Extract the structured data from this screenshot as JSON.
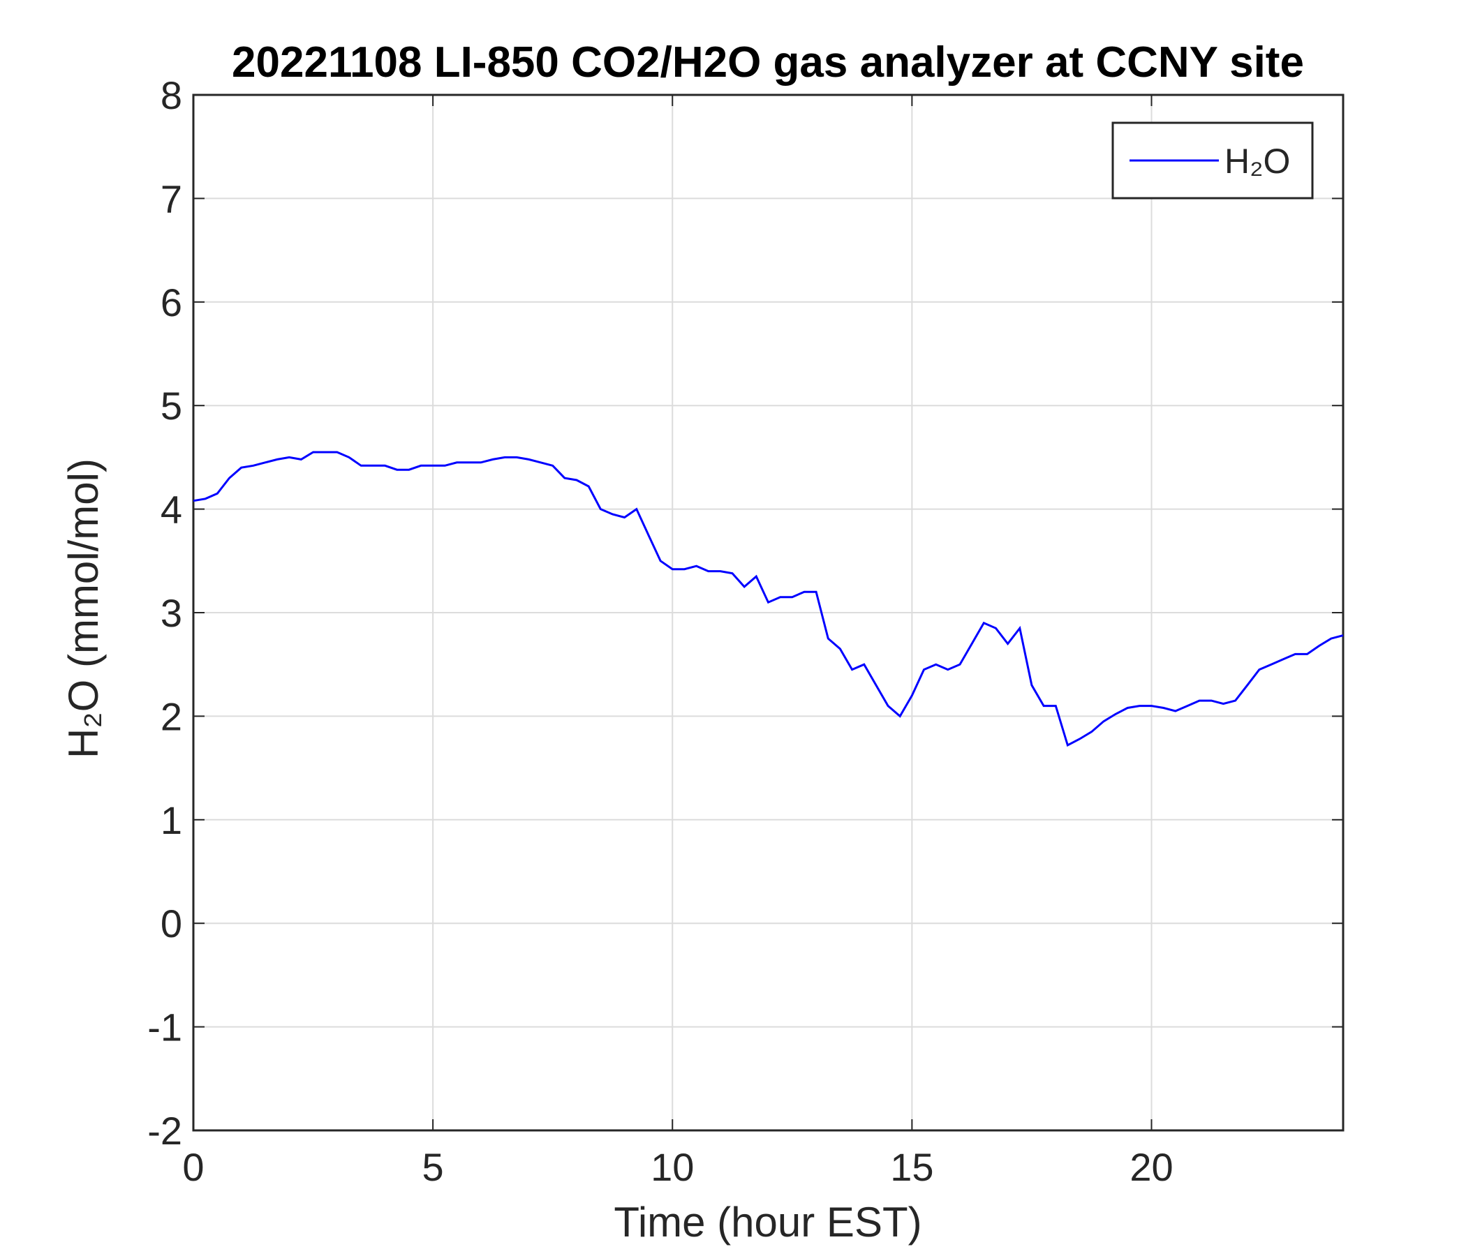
{
  "chart_data": {
    "type": "line",
    "title": "20221108 LI-850 CO2/H2O gas analyzer at CCNY site",
    "x_label": "Time (hour EST)",
    "y_label": "H₂O (mmol/mol)",
    "x": [
      0,
      0.25,
      0.5,
      0.75,
      1,
      1.25,
      1.5,
      1.75,
      2,
      2.25,
      2.5,
      2.75,
      3,
      3.25,
      3.5,
      3.75,
      4,
      4.25,
      4.5,
      4.75,
      5,
      5.25,
      5.5,
      5.75,
      6,
      6.25,
      6.5,
      6.75,
      7,
      7.25,
      7.5,
      7.75,
      8,
      8.25,
      8.5,
      8.75,
      9,
      9.25,
      9.5,
      9.75,
      10,
      10.25,
      10.5,
      10.75,
      11,
      11.25,
      11.5,
      11.75,
      12,
      12.25,
      12.5,
      12.75,
      13,
      13.25,
      13.5,
      13.75,
      14,
      14.25,
      14.5,
      14.75,
      15,
      15.25,
      15.5,
      15.75,
      16,
      16.25,
      16.5,
      16.75,
      17,
      17.25,
      17.5,
      17.75,
      18,
      18.25,
      18.5,
      18.75,
      19,
      19.25,
      19.5,
      19.75,
      20,
      20.25,
      20.5,
      20.75,
      21,
      21.25,
      21.5,
      21.75,
      22,
      22.25,
      22.5,
      22.75,
      23,
      23.25,
      23.5,
      23.75,
      24
    ],
    "series": [
      {
        "name": "H₂O",
        "color": "#0000ff",
        "values": [
          4.08,
          4.1,
          4.15,
          4.3,
          4.4,
          4.42,
          4.45,
          4.48,
          4.5,
          4.48,
          4.55,
          4.55,
          4.55,
          4.5,
          4.42,
          4.42,
          4.42,
          4.38,
          4.38,
          4.42,
          4.42,
          4.42,
          4.45,
          4.45,
          4.45,
          4.48,
          4.5,
          4.5,
          4.48,
          4.45,
          4.42,
          4.3,
          4.28,
          4.22,
          4.0,
          3.95,
          3.92,
          4.0,
          3.75,
          3.5,
          3.42,
          3.42,
          3.45,
          3.4,
          3.4,
          3.38,
          3.25,
          3.35,
          3.1,
          3.15,
          3.15,
          3.2,
          3.2,
          2.75,
          2.65,
          2.45,
          2.5,
          2.3,
          2.1,
          2.0,
          2.2,
          2.45,
          2.5,
          2.45,
          2.5,
          2.7,
          2.9,
          2.85,
          2.7,
          2.85,
          2.3,
          2.1,
          2.1,
          1.72,
          1.78,
          1.85,
          1.95,
          2.02,
          2.08,
          2.1,
          2.1,
          2.08,
          2.05,
          2.1,
          2.15,
          2.15,
          2.12,
          2.15,
          2.3,
          2.45,
          2.5,
          2.55,
          2.6,
          2.6,
          2.68,
          2.75,
          2.78
        ]
      }
    ],
    "xlim": [
      0,
      24
    ],
    "xticks": [
      0,
      5,
      10,
      15,
      20
    ],
    "ylim": [
      -2,
      8
    ],
    "yticks": [
      -2,
      -1,
      0,
      1,
      2,
      3,
      4,
      5,
      6,
      7,
      8
    ],
    "grid": true,
    "legend": "northeast"
  }
}
